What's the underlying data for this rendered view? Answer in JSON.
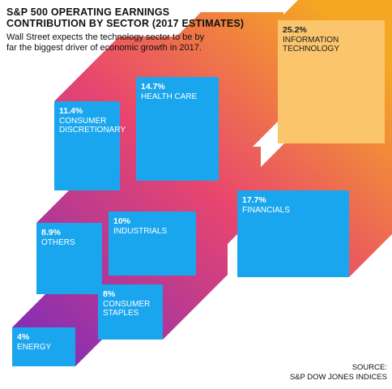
{
  "title": "S&P 500 OPERATING EARNINGS CONTRIBUTION BY SECTOR  (2017 ESTIMATES)",
  "subtitle": "Wall Street expects the technology sector to be by far the biggest driver of economic growth in 2017.",
  "source_label": "SOURCE:",
  "source_org": "S&P DOW JONES INDICES",
  "colors": {
    "box": "#1aa6ee",
    "highlight": "#fbc56c",
    "gradient_light": "#f5a623",
    "gradient_mid": "#e8456f",
    "gradient_dark": "#7b2bbd",
    "text": "#ffffff",
    "highlight_text": "#222222"
  },
  "chart_data": {
    "type": "bar",
    "unit": "%",
    "categories": [
      "Information Technology",
      "Financials",
      "Health Care",
      "Consumer Discretionary",
      "Industrials",
      "Others",
      "Consumer Staples",
      "Energy"
    ],
    "values": [
      25.2,
      17.7,
      14.7,
      11.4,
      10,
      8.9,
      8,
      4
    ],
    "boxes": [
      {
        "value_text": "25.2%",
        "label_lines": [
          "INFORMATION",
          "TECHNOLOGY"
        ],
        "value": 25.2,
        "highlight": true
      },
      {
        "value_text": "17.7%",
        "label_lines": [
          "FINANCIALS"
        ],
        "value": 17.7,
        "highlight": false
      },
      {
        "value_text": "14.7%",
        "label_lines": [
          "HEALTH CARE"
        ],
        "value": 14.7,
        "highlight": false
      },
      {
        "value_text": "11.4%",
        "label_lines": [
          "CONSUMER",
          "DISCRETIONARY"
        ],
        "value": 11.4,
        "highlight": false
      },
      {
        "value_text": "10%",
        "label_lines": [
          "INDUSTRIALS"
        ],
        "value": 10,
        "highlight": false
      },
      {
        "value_text": "8.9%",
        "label_lines": [
          "OTHERS"
        ],
        "value": 8.9,
        "highlight": false
      },
      {
        "value_text": "8%",
        "label_lines": [
          "CONSUMER",
          "STAPLES"
        ],
        "value": 8,
        "highlight": false
      },
      {
        "value_text": "4%",
        "label_lines": [
          "ENERGY"
        ],
        "value": 4,
        "highlight": false
      }
    ]
  }
}
